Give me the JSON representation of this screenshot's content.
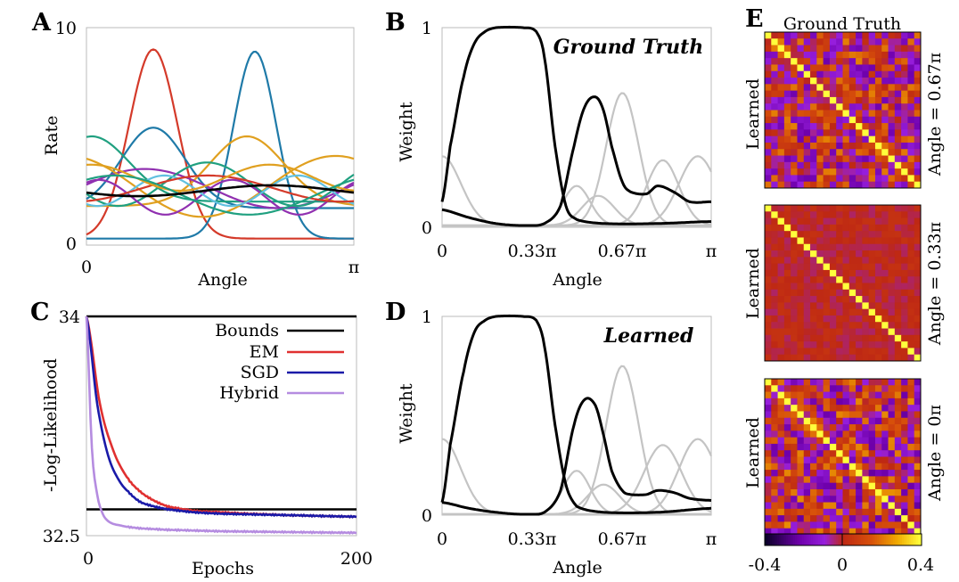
{
  "panels": {
    "A": {
      "letter": "A",
      "ylabel": "Rate",
      "xlabel": "Angle",
      "yticks": [
        "10",
        "0"
      ],
      "xticks": [
        "0",
        "π"
      ]
    },
    "B": {
      "letter": "B",
      "ylabel": "Weight",
      "xlabel": "Angle",
      "annotation": "Ground Truth",
      "yticks": [
        "1",
        "0"
      ],
      "xticks": [
        "0",
        "0.33π",
        "0.67π",
        "π"
      ]
    },
    "C": {
      "letter": "C",
      "ylabel": "-Log-Likelihood",
      "xlabel": "Epochs",
      "yticks": [
        "34",
        "32.5"
      ],
      "xticks": [
        "0",
        "200"
      ]
    },
    "D": {
      "letter": "D",
      "ylabel": "Weight",
      "xlabel": "Angle",
      "annotation": "Learned",
      "yticks": [
        "1",
        "0"
      ],
      "xticks": [
        "0",
        "0.33π",
        "0.67π",
        "π"
      ]
    },
    "E": {
      "letter": "E",
      "title": "Ground Truth",
      "row_label": "Learned",
      "angles": [
        "Angle = 0.67π",
        "Angle = 0.33π",
        "Angle = 0π"
      ],
      "colorbar_ticks": [
        "-0.4",
        "0",
        "0.4"
      ]
    }
  },
  "chart_data": [
    {
      "panel": "A",
      "type": "line",
      "title": "",
      "xlabel": "Angle",
      "ylabel": "Rate",
      "xlim": [
        0,
        3.1416
      ],
      "ylim": [
        0,
        10
      ],
      "series": [
        {
          "color": "#d43a2a",
          "values": {
            "kind": "gauss",
            "base": 0.3,
            "amp": 8.7,
            "center": 0.25,
            "width": 0.09
          }
        },
        {
          "color": "#1f7aa8",
          "values": {
            "kind": "gauss",
            "base": 0.3,
            "amp": 8.6,
            "center": 0.63,
            "width": 0.08
          }
        },
        {
          "color": "#1f7aa8",
          "values": {
            "kind": "gauss",
            "base": 1.7,
            "amp": 3.7,
            "center": 0.25,
            "width": 0.12
          }
        },
        {
          "color": "#e0a020",
          "values": {
            "kind": "gauss",
            "base": 1.8,
            "amp": 3.2,
            "center": 0.6,
            "width": 0.14
          }
        },
        {
          "color": "#20a080",
          "values": {
            "kind": "gauss",
            "base": 2.0,
            "amp": 3.0,
            "center": 0.02,
            "width": 0.14
          }
        },
        {
          "color": "#9030b0",
          "values": {
            "kind": "wave",
            "base": 2.6,
            "amp": 0.9,
            "freq": 1.0,
            "phase": 0.2
          }
        },
        {
          "color": "#e0a020",
          "values": {
            "kind": "wave",
            "base": 2.7,
            "amp": 1.4,
            "freq": 1.0,
            "phase": 2.0
          }
        },
        {
          "color": "#20a080",
          "values": {
            "kind": "wave",
            "base": 2.8,
            "amp": 1.0,
            "freq": 1.5,
            "phase": 3.6
          }
        },
        {
          "color": "#9030b0",
          "values": {
            "kind": "wave",
            "base": 2.2,
            "amp": 0.8,
            "freq": 2.0,
            "phase": 1.0
          }
        },
        {
          "color": "#60c0e0",
          "values": {
            "kind": "wave",
            "base": 2.5,
            "amp": 0.7,
            "freq": 2.0,
            "phase": 4.2
          }
        },
        {
          "color": "#d43a2a",
          "values": {
            "kind": "wave",
            "base": 2.6,
            "amp": 0.6,
            "freq": 1.0,
            "phase": 5.0
          }
        },
        {
          "color": "#e0a020",
          "values": {
            "kind": "wave",
            "base": 3.1,
            "amp": 0.6,
            "freq": 1.5,
            "phase": 1.4
          }
        },
        {
          "color": "#20a080",
          "values": {
            "kind": "wave",
            "base": 2.3,
            "amp": 0.9,
            "freq": 1.0,
            "phase": 0.9
          }
        },
        {
          "color": "#000000",
          "values": {
            "kind": "wave",
            "base": 2.5,
            "amp": 0.25,
            "freq": 1.0,
            "phase": 3.5
          }
        }
      ]
    },
    {
      "panel": "B",
      "type": "line",
      "xlabel": "Angle",
      "ylabel": "Weight",
      "xlim": [
        0,
        1
      ],
      "ylim": [
        0,
        1
      ],
      "black": [
        {
          "x": [
            0,
            0.03,
            0.08,
            0.12,
            0.16,
            0.2,
            0.3,
            0.35,
            0.38,
            0.42,
            0.46,
            0.5,
            0.6,
            0.8,
            1.0
          ],
          "y": [
            0.12,
            0.4,
            0.75,
            0.92,
            0.98,
            1.0,
            1.0,
            0.98,
            0.85,
            0.4,
            0.1,
            0.03,
            0.01,
            0.01,
            0.02
          ]
        },
        {
          "x": [
            0,
            0.1,
            0.2,
            0.3,
            0.38,
            0.44,
            0.49,
            0.53,
            0.57,
            0.6,
            0.63,
            0.67,
            0.7,
            0.76,
            0.8,
            0.86,
            0.92,
            1.0
          ],
          "y": [
            0.08,
            0.04,
            0.01,
            0.0,
            0.01,
            0.1,
            0.4,
            0.6,
            0.65,
            0.58,
            0.4,
            0.22,
            0.17,
            0.16,
            0.2,
            0.17,
            0.12,
            0.12
          ]
        }
      ],
      "gray": [
        {
          "center": 0.67,
          "amp": 0.67,
          "width": 0.06
        },
        {
          "center": 0.5,
          "amp": 0.2,
          "width": 0.05
        },
        {
          "center": 0.0,
          "amp": 0.35,
          "width": 0.07
        },
        {
          "center": 0.82,
          "amp": 0.33,
          "width": 0.06
        },
        {
          "center": 0.95,
          "amp": 0.35,
          "width": 0.07
        },
        {
          "center": 0.58,
          "amp": 0.15,
          "width": 0.06
        }
      ]
    },
    {
      "panel": "C",
      "type": "line",
      "xlabel": "Epochs",
      "ylabel": "-Log-Likelihood",
      "xlim": [
        0,
        200
      ],
      "ylim": [
        32.5,
        34
      ],
      "series": [
        {
          "name": "Bounds",
          "color": "#000000",
          "x": [
            0,
            200
          ],
          "y": [
            34.0,
            34.0
          ]
        },
        {
          "name": "Bounds",
          "color": "#000000",
          "x": [
            0,
            200
          ],
          "y": [
            32.68,
            32.68
          ]
        },
        {
          "name": "EM",
          "color": "#e03030",
          "x": [
            0,
            10,
            20,
            30,
            40,
            50,
            60,
            80,
            100,
            120,
            150,
            200
          ],
          "y": [
            34.0,
            33.4,
            33.08,
            32.9,
            32.8,
            32.74,
            32.7,
            32.67,
            32.66,
            32.65,
            32.64,
            32.63
          ]
        },
        {
          "name": "SGD",
          "color": "#1a1aa8",
          "x": [
            0,
            8,
            16,
            24,
            32,
            40,
            50,
            60,
            80,
            100,
            150,
            200
          ],
          "y": [
            34.0,
            33.4,
            33.05,
            32.88,
            32.79,
            32.73,
            32.7,
            32.68,
            32.66,
            32.65,
            32.64,
            32.63
          ]
        },
        {
          "name": "Hybrid",
          "color": "#b58ce0",
          "x": [
            0,
            4,
            8,
            12,
            16,
            20,
            25,
            30,
            40,
            60,
            100,
            200
          ],
          "y": [
            34.0,
            33.1,
            32.78,
            32.65,
            32.6,
            32.58,
            32.57,
            32.56,
            32.55,
            32.54,
            32.53,
            32.52
          ]
        }
      ],
      "legend": [
        "Bounds",
        "EM",
        "SGD",
        "Hybrid"
      ]
    },
    {
      "panel": "D",
      "type": "line",
      "xlabel": "Angle",
      "ylabel": "Weight",
      "xlim": [
        0,
        1
      ],
      "ylim": [
        0,
        1
      ],
      "black": [
        {
          "x": [
            0,
            0.03,
            0.08,
            0.12,
            0.16,
            0.2,
            0.3,
            0.35,
            0.38,
            0.42,
            0.46,
            0.5,
            0.6,
            0.8,
            1.0
          ],
          "y": [
            0.06,
            0.35,
            0.72,
            0.92,
            0.98,
            1.0,
            1.0,
            0.98,
            0.85,
            0.45,
            0.15,
            0.04,
            0.01,
            0.01,
            0.03
          ]
        },
        {
          "x": [
            0,
            0.1,
            0.2,
            0.3,
            0.38,
            0.44,
            0.49,
            0.53,
            0.57,
            0.6,
            0.63,
            0.67,
            0.7,
            0.76,
            0.8,
            0.86,
            0.92,
            1.0
          ],
          "y": [
            0.06,
            0.03,
            0.01,
            0.0,
            0.01,
            0.12,
            0.45,
            0.58,
            0.55,
            0.4,
            0.22,
            0.12,
            0.1,
            0.1,
            0.12,
            0.11,
            0.08,
            0.07
          ]
        }
      ],
      "gray": [
        {
          "center": 0.67,
          "amp": 0.75,
          "width": 0.06
        },
        {
          "center": 0.5,
          "amp": 0.22,
          "width": 0.05
        },
        {
          "center": 0.0,
          "amp": 0.38,
          "width": 0.07
        },
        {
          "center": 0.82,
          "amp": 0.35,
          "width": 0.07
        },
        {
          "center": 0.95,
          "amp": 0.38,
          "width": 0.07
        },
        {
          "center": 0.6,
          "amp": 0.15,
          "width": 0.06
        }
      ]
    },
    {
      "panel": "E",
      "type": "heatmap",
      "size": 24,
      "colorbar": {
        "min": -0.4,
        "max": 0.4
      },
      "matrices": [
        {
          "label": "Angle = 0.67π",
          "noise": 0.22,
          "seed": 7
        },
        {
          "label": "Angle = 0.33π",
          "noise": 0.04,
          "seed": 3
        },
        {
          "label": "Angle = 0π",
          "noise": 0.24,
          "seed": 11
        }
      ]
    }
  ]
}
